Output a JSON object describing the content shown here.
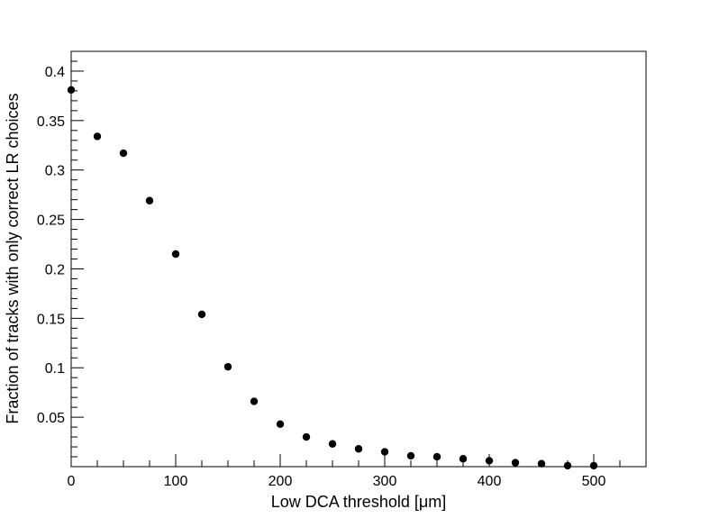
{
  "chart_data": {
    "type": "scatter",
    "title": "",
    "xlabel": "Low DCA threshold [μm]",
    "ylabel": "Fraction of tracks with only correct LR choices",
    "xlim": [
      0,
      550
    ],
    "ylim": [
      0,
      0.42
    ],
    "grid": false,
    "x_ticks": [
      {
        "value": 0,
        "label": "0"
      },
      {
        "value": 100,
        "label": "100"
      },
      {
        "value": 200,
        "label": "200"
      },
      {
        "value": 300,
        "label": "300"
      },
      {
        "value": 400,
        "label": "400"
      },
      {
        "value": 500,
        "label": "500"
      }
    ],
    "y_ticks": [
      {
        "value": 0.05,
        "label": "0.05"
      },
      {
        "value": 0.1,
        "label": "0.1"
      },
      {
        "value": 0.15,
        "label": "0.15"
      },
      {
        "value": 0.2,
        "label": "0.2"
      },
      {
        "value": 0.25,
        "label": "0.25"
      },
      {
        "value": 0.3,
        "label": "0.3"
      },
      {
        "value": 0.35,
        "label": "0.35"
      },
      {
        "value": 0.4,
        "label": "0.4"
      }
    ],
    "series": [
      {
        "color": "#000000",
        "points": [
          {
            "x": 0,
            "y": 0.381
          },
          {
            "x": 25,
            "y": 0.334
          },
          {
            "x": 50,
            "y": 0.317
          },
          {
            "x": 75,
            "y": 0.269
          },
          {
            "x": 100,
            "y": 0.215
          },
          {
            "x": 125,
            "y": 0.154
          },
          {
            "x": 150,
            "y": 0.101
          },
          {
            "x": 175,
            "y": 0.066
          },
          {
            "x": 200,
            "y": 0.043
          },
          {
            "x": 225,
            "y": 0.03
          },
          {
            "x": 250,
            "y": 0.023
          },
          {
            "x": 275,
            "y": 0.018
          },
          {
            "x": 300,
            "y": 0.015
          },
          {
            "x": 325,
            "y": 0.011
          },
          {
            "x": 350,
            "y": 0.01
          },
          {
            "x": 375,
            "y": 0.008
          },
          {
            "x": 400,
            "y": 0.006
          },
          {
            "x": 425,
            "y": 0.004
          },
          {
            "x": 450,
            "y": 0.003
          },
          {
            "x": 475,
            "y": 0.001
          },
          {
            "x": 500,
            "y": 0.001
          }
        ]
      }
    ]
  }
}
